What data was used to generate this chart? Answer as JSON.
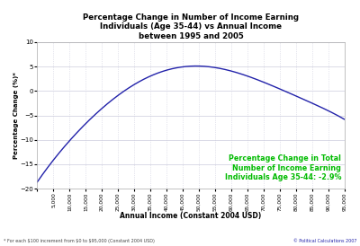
{
  "title": "Percentage Change in Number of Income Earning\nIndividuals (Age 35-44) vs Annual Income\nbetween 1995 and 2005",
  "xlabel": "Annual Income (Constant 2004 USD)",
  "ylabel": "Percentage Change (%)*",
  "annotation": "Percentage Change in Total\nNumber of Income Earning\nIndividuals Age 35-44: -2.9%",
  "annotation_color": "#00bb00",
  "footnote_left": "* For each $100 increment from $0 to $95,000 (Constant 2004 USD)",
  "footnote_right": "© Political Calculations 2007",
  "line_color": "#2222aa",
  "background_color": "#ffffff",
  "grid_color": "#ccccdd",
  "xlim": [
    0,
    95000
  ],
  "ylim": [
    -20,
    10
  ],
  "yticks": [
    -20,
    -15,
    -10,
    -5,
    0,
    5,
    10
  ],
  "xtick_step": 5000,
  "curve_xp": [
    0,
    5000,
    10000,
    15000,
    20000,
    25000,
    30000,
    35000,
    40000,
    45000,
    47000,
    50000,
    55000,
    60000,
    65000,
    70000,
    75000,
    80000,
    85000,
    90000,
    95000
  ],
  "curve_yp": [
    -18.5,
    -14.5,
    -10.0,
    -6.5,
    -3.5,
    -1.0,
    1.2,
    3.0,
    4.2,
    5.0,
    5.2,
    5.2,
    4.8,
    4.0,
    3.0,
    1.8,
    0.5,
    -1.0,
    -2.5,
    -4.0,
    -5.8
  ]
}
